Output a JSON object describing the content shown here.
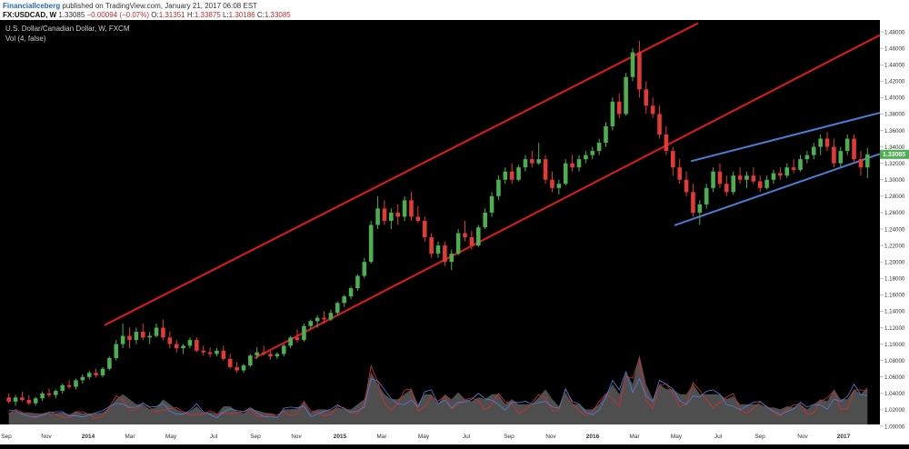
{
  "header": {
    "author": "FinancialIceberg",
    "published": "published on TradingView.com, January 21, 2017 06:08 EST",
    "symbol": "FX:USDCAD, W",
    "last": "1.33085",
    "change": "−0.00094 (−0.07%)",
    "o_label": "O:",
    "o": "1.31351",
    "h_label": "H:",
    "h": "1.33875",
    "l_label": "L:",
    "l": "1.30186",
    "c_label": "C:",
    "c": "1.33085"
  },
  "chart_title": "U.S. Dollar/Canadian Dollar, W, FXCM",
  "vol_label": "Vol (4, false)",
  "price_badge": "1.33085",
  "colors": {
    "background": "#000000",
    "up": "#4caf50",
    "down": "#e53935",
    "channel_red": "#e41a1a",
    "channel_blue": "#4a7fd4",
    "volume_fill": "#5c5c5c",
    "vol_line_red": "#d32f2f",
    "vol_line_blue": "#4f7fd6",
    "axis_bg": "#ffffff",
    "badge": "#4caf50"
  },
  "chart_data": {
    "type": "candlestick",
    "title": "U.S. Dollar/Canadian Dollar, W, FXCM",
    "y_ticks": [
      "1.48000",
      "1.46000",
      "1.44000",
      "1.42000",
      "1.40000",
      "1.38000",
      "1.36000",
      "1.34000",
      "1.32000",
      "1.30000",
      "1.28000",
      "1.26000",
      "1.24000",
      "1.22000",
      "1.20000",
      "1.18000",
      "1.16000",
      "1.14000",
      "1.12000",
      "1.10000",
      "1.08000",
      "1.06000",
      "1.04000",
      "1.02000",
      "1.00000"
    ],
    "x_ticks": [
      "Sep",
      "Nov",
      "2014",
      "Mar",
      "May",
      "Jul",
      "Sep",
      "Nov",
      "2015",
      "Mar",
      "May",
      "Jul",
      "Sep",
      "Nov",
      "2016",
      "Mar",
      "May",
      "Jul",
      "Sep",
      "Nov",
      "2017"
    ],
    "ylim": [
      0.99,
      1.5
    ],
    "candles": [
      [
        1.035,
        1.04,
        1.028,
        1.03
      ],
      [
        1.03,
        1.038,
        1.025,
        1.035
      ],
      [
        1.035,
        1.042,
        1.03,
        1.032
      ],
      [
        1.032,
        1.038,
        1.026,
        1.028
      ],
      [
        1.028,
        1.036,
        1.025,
        1.034
      ],
      [
        1.034,
        1.042,
        1.031,
        1.04
      ],
      [
        1.04,
        1.046,
        1.035,
        1.038
      ],
      [
        1.038,
        1.045,
        1.034,
        1.043
      ],
      [
        1.043,
        1.052,
        1.04,
        1.05
      ],
      [
        1.05,
        1.056,
        1.046,
        1.048
      ],
      [
        1.048,
        1.058,
        1.045,
        1.056
      ],
      [
        1.056,
        1.063,
        1.052,
        1.06
      ],
      [
        1.06,
        1.068,
        1.057,
        1.065
      ],
      [
        1.065,
        1.07,
        1.059,
        1.062
      ],
      [
        1.062,
        1.072,
        1.06,
        1.07
      ],
      [
        1.07,
        1.085,
        1.068,
        1.083
      ],
      [
        1.083,
        1.105,
        1.08,
        1.1
      ],
      [
        1.1,
        1.125,
        1.095,
        1.11
      ],
      [
        1.11,
        1.12,
        1.095,
        1.105
      ],
      [
        1.105,
        1.12,
        1.1,
        1.115
      ],
      [
        1.115,
        1.125,
        1.105,
        1.108
      ],
      [
        1.108,
        1.115,
        1.1,
        1.11
      ],
      [
        1.11,
        1.125,
        1.108,
        1.12
      ],
      [
        1.12,
        1.13,
        1.105,
        1.108
      ],
      [
        1.108,
        1.115,
        1.095,
        1.1
      ],
      [
        1.1,
        1.105,
        1.09,
        1.095
      ],
      [
        1.095,
        1.1,
        1.088,
        1.098
      ],
      [
        1.098,
        1.108,
        1.095,
        1.105
      ],
      [
        1.105,
        1.108,
        1.09,
        1.092
      ],
      [
        1.092,
        1.098,
        1.086,
        1.09
      ],
      [
        1.09,
        1.096,
        1.084,
        1.088
      ],
      [
        1.088,
        1.095,
        1.085,
        1.092
      ],
      [
        1.092,
        1.098,
        1.08,
        1.082
      ],
      [
        1.082,
        1.088,
        1.07,
        1.072
      ],
      [
        1.072,
        1.078,
        1.065,
        1.068
      ],
      [
        1.068,
        1.076,
        1.065,
        1.074
      ],
      [
        1.074,
        1.088,
        1.072,
        1.086
      ],
      [
        1.086,
        1.096,
        1.082,
        1.09
      ],
      [
        1.09,
        1.098,
        1.086,
        1.088
      ],
      [
        1.088,
        1.092,
        1.081,
        1.085
      ],
      [
        1.085,
        1.09,
        1.082,
        1.088
      ],
      [
        1.088,
        1.1,
        1.085,
        1.098
      ],
      [
        1.098,
        1.11,
        1.095,
        1.108
      ],
      [
        1.108,
        1.118,
        1.102,
        1.105
      ],
      [
        1.105,
        1.125,
        1.103,
        1.122
      ],
      [
        1.122,
        1.13,
        1.118,
        1.128
      ],
      [
        1.128,
        1.135,
        1.12,
        1.132
      ],
      [
        1.132,
        1.14,
        1.125,
        1.13
      ],
      [
        1.13,
        1.142,
        1.128,
        1.138
      ],
      [
        1.138,
        1.152,
        1.135,
        1.15
      ],
      [
        1.15,
        1.16,
        1.145,
        1.158
      ],
      [
        1.158,
        1.17,
        1.155,
        1.168
      ],
      [
        1.168,
        1.185,
        1.165,
        1.183
      ],
      [
        1.183,
        1.205,
        1.18,
        1.2
      ],
      [
        1.2,
        1.25,
        1.198,
        1.245
      ],
      [
        1.245,
        1.28,
        1.24,
        1.265
      ],
      [
        1.265,
        1.275,
        1.245,
        1.25
      ],
      [
        1.25,
        1.265,
        1.24,
        1.26
      ],
      [
        1.26,
        1.27,
        1.245,
        1.255
      ],
      [
        1.255,
        1.28,
        1.25,
        1.275
      ],
      [
        1.275,
        1.285,
        1.25,
        1.255
      ],
      [
        1.255,
        1.268,
        1.248,
        1.25
      ],
      [
        1.25,
        1.255,
        1.225,
        1.23
      ],
      [
        1.23,
        1.235,
        1.205,
        1.21
      ],
      [
        1.21,
        1.225,
        1.205,
        1.22
      ],
      [
        1.22,
        1.225,
        1.195,
        1.2
      ],
      [
        1.2,
        1.215,
        1.19,
        1.21
      ],
      [
        1.21,
        1.24,
        1.208,
        1.235
      ],
      [
        1.235,
        1.25,
        1.225,
        1.23
      ],
      [
        1.23,
        1.238,
        1.215,
        1.22
      ],
      [
        1.22,
        1.245,
        1.218,
        1.242
      ],
      [
        1.242,
        1.265,
        1.24,
        1.26
      ],
      [
        1.26,
        1.285,
        1.255,
        1.28
      ],
      [
        1.28,
        1.305,
        1.275,
        1.3
      ],
      [
        1.3,
        1.315,
        1.295,
        1.31
      ],
      [
        1.31,
        1.32,
        1.295,
        1.3
      ],
      [
        1.3,
        1.318,
        1.298,
        1.315
      ],
      [
        1.315,
        1.33,
        1.31,
        1.325
      ],
      [
        1.325,
        1.335,
        1.315,
        1.32
      ],
      [
        1.32,
        1.345,
        1.318,
        1.325
      ],
      [
        1.325,
        1.33,
        1.295,
        1.3
      ],
      [
        1.3,
        1.31,
        1.285,
        1.29
      ],
      [
        1.29,
        1.3,
        1.282,
        1.295
      ],
      [
        1.295,
        1.325,
        1.293,
        1.32
      ],
      [
        1.32,
        1.33,
        1.31,
        1.315
      ],
      [
        1.315,
        1.33,
        1.31,
        1.325
      ],
      [
        1.325,
        1.335,
        1.32,
        1.33
      ],
      [
        1.33,
        1.34,
        1.325,
        1.335
      ],
      [
        1.335,
        1.35,
        1.33,
        1.345
      ],
      [
        1.345,
        1.37,
        1.34,
        1.365
      ],
      [
        1.365,
        1.4,
        1.36,
        1.395
      ],
      [
        1.395,
        1.405,
        1.375,
        1.38
      ],
      [
        1.38,
        1.43,
        1.378,
        1.425
      ],
      [
        1.425,
        1.46,
        1.42,
        1.455
      ],
      [
        1.455,
        1.469,
        1.4,
        1.41
      ],
      [
        1.41,
        1.42,
        1.38,
        1.39
      ],
      [
        1.39,
        1.4,
        1.375,
        1.38
      ],
      [
        1.38,
        1.39,
        1.35,
        1.355
      ],
      [
        1.355,
        1.365,
        1.33,
        1.335
      ],
      [
        1.335,
        1.34,
        1.305,
        1.315
      ],
      [
        1.315,
        1.325,
        1.295,
        1.3
      ],
      [
        1.3,
        1.31,
        1.28,
        1.285
      ],
      [
        1.285,
        1.295,
        1.255,
        1.26
      ],
      [
        1.26,
        1.275,
        1.245,
        1.27
      ],
      [
        1.27,
        1.295,
        1.265,
        1.29
      ],
      [
        1.29,
        1.315,
        1.285,
        1.31
      ],
      [
        1.31,
        1.32,
        1.29,
        1.295
      ],
      [
        1.295,
        1.305,
        1.28,
        1.285
      ],
      [
        1.285,
        1.31,
        1.282,
        1.305
      ],
      [
        1.305,
        1.315,
        1.295,
        1.3
      ],
      [
        1.3,
        1.31,
        1.29,
        1.305
      ],
      [
        1.305,
        1.315,
        1.295,
        1.298
      ],
      [
        1.298,
        1.305,
        1.285,
        1.29
      ],
      [
        1.29,
        1.305,
        1.288,
        1.3
      ],
      [
        1.3,
        1.312,
        1.295,
        1.308
      ],
      [
        1.308,
        1.315,
        1.3,
        1.305
      ],
      [
        1.305,
        1.32,
        1.302,
        1.315
      ],
      [
        1.315,
        1.325,
        1.308,
        1.312
      ],
      [
        1.312,
        1.33,
        1.31,
        1.325
      ],
      [
        1.325,
        1.335,
        1.32,
        1.33
      ],
      [
        1.33,
        1.345,
        1.325,
        1.34
      ],
      [
        1.34,
        1.355,
        1.33,
        1.35
      ],
      [
        1.35,
        1.358,
        1.335,
        1.34
      ],
      [
        1.34,
        1.35,
        1.315,
        1.32
      ],
      [
        1.32,
        1.34,
        1.315,
        1.335
      ],
      [
        1.335,
        1.355,
        1.33,
        1.35
      ],
      [
        1.35,
        1.355,
        1.32,
        1.325
      ],
      [
        1.325,
        1.335,
        1.305,
        1.315
      ],
      [
        1.315,
        1.3388,
        1.3019,
        1.3309
      ]
    ]
  }
}
